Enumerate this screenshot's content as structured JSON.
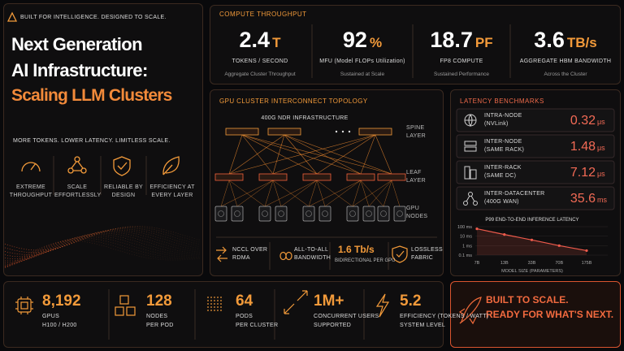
{
  "header": {
    "tagline": "BUILT FOR INTELLIGENCE. DESIGNED TO SCALE.",
    "title": [
      "Next Generation",
      "AI Infrastructure:"
    ],
    "highlight": "Scaling LLM Clusters",
    "subtitle": "MORE TOKENS. LOWER LATENCY. LIMITLESS SCALE.",
    "features": [
      "EXTREME THROUGHPUT",
      "SCALE EFFORTLESSLY",
      "RELIABLE BY DESIGN",
      "EFFICIENCY AT EVERY LAYER"
    ]
  },
  "throughput": {
    "title": "COMPUTE THROUGHPUT",
    "metrics": [
      {
        "value": 2.4,
        "unit": "T",
        "label": "TOKENS / SECOND",
        "note": "Aggregate Cluster Throughput"
      },
      {
        "value": 92,
        "unit": "%",
        "label": "MFU (Model FLOPs Utilization)",
        "note": "Sustained at Scale"
      },
      {
        "value": 18.7,
        "unit": "PF",
        "label": "FP8 COMPUTE",
        "note": "Sustained Performance"
      },
      {
        "value": 3.6,
        "unit": "TB/s",
        "label": "AGGREGATE HBM BANDWIDTH",
        "note": "Across the Cluster"
      }
    ]
  },
  "topology": {
    "title": "GPU CLUSTER INTERCONNECT TOPOLOGY",
    "infrastructure": "400G NDR INFRASTRUCTURE",
    "layers": [
      "SPINE LAYER",
      "LEAF LAYER",
      "GPU NODES"
    ],
    "features": [
      {
        "label": "NCCL OVER RDMA"
      },
      {
        "label": "ALL-TO-ALL BANDWIDTH"
      },
      {
        "value": 1.6,
        "unit": "Tb/s",
        "label": "BIDIRECTIONAL PER GPU"
      },
      {
        "label": "LOSSLESS FABRIC"
      }
    ]
  },
  "latency": {
    "title": "LATENCY BENCHMARKS",
    "rows": [
      {
        "name": "INTRA-NODE",
        "detail": "(NVLink)",
        "value": 0.32,
        "unit": "μs"
      },
      {
        "name": "INTER-NODE",
        "detail": "(SAME RACK)",
        "value": 1.48,
        "unit": "μs"
      },
      {
        "name": "INTER-RACK",
        "detail": "(SAME DC)",
        "value": 7.12,
        "unit": "μs"
      },
      {
        "name": "INTER-DATACENTER",
        "detail": "(400G WAN)",
        "value": 35.6,
        "unit": "ms"
      }
    ]
  },
  "chart_data": {
    "type": "line",
    "title": "P99 END-TO-END INFERENCE LATENCY",
    "x_label": "MODEL SIZE (PARAMETERS)",
    "categories": [
      "7B",
      "13B",
      "33B",
      "70B",
      "175B"
    ],
    "values": [
      60,
      15,
      4,
      1,
      0.3
    ],
    "color": "#ef5b4c",
    "log_scale": true,
    "ylim": [
      0.1,
      100
    ],
    "yticks": [
      {
        "value": 100,
        "label": "100 ms"
      },
      {
        "value": 10,
        "label": "10 ms"
      },
      {
        "value": 1,
        "label": "1 ms"
      },
      {
        "value": 0.1,
        "label": "0.1 ms"
      }
    ]
  },
  "stats": [
    {
      "value": "8,192",
      "label": "GPUS",
      "note": "H100 / H200"
    },
    {
      "value": 128,
      "label": "NODES",
      "note": "PER POD"
    },
    {
      "value": 64,
      "label": "PODS",
      "note": "PER CLUSTER"
    },
    {
      "value": "1M+",
      "label": "CONCURRENT USERS",
      "note": "SUPPORTED"
    },
    {
      "value": 5.2,
      "label": "EFFICIENCY (TOKENS / WATT)",
      "note": "SYSTEM LEVEL"
    }
  ],
  "cta": [
    "BUILT TO SCALE.",
    "READY FOR WHAT'S NEXT."
  ]
}
